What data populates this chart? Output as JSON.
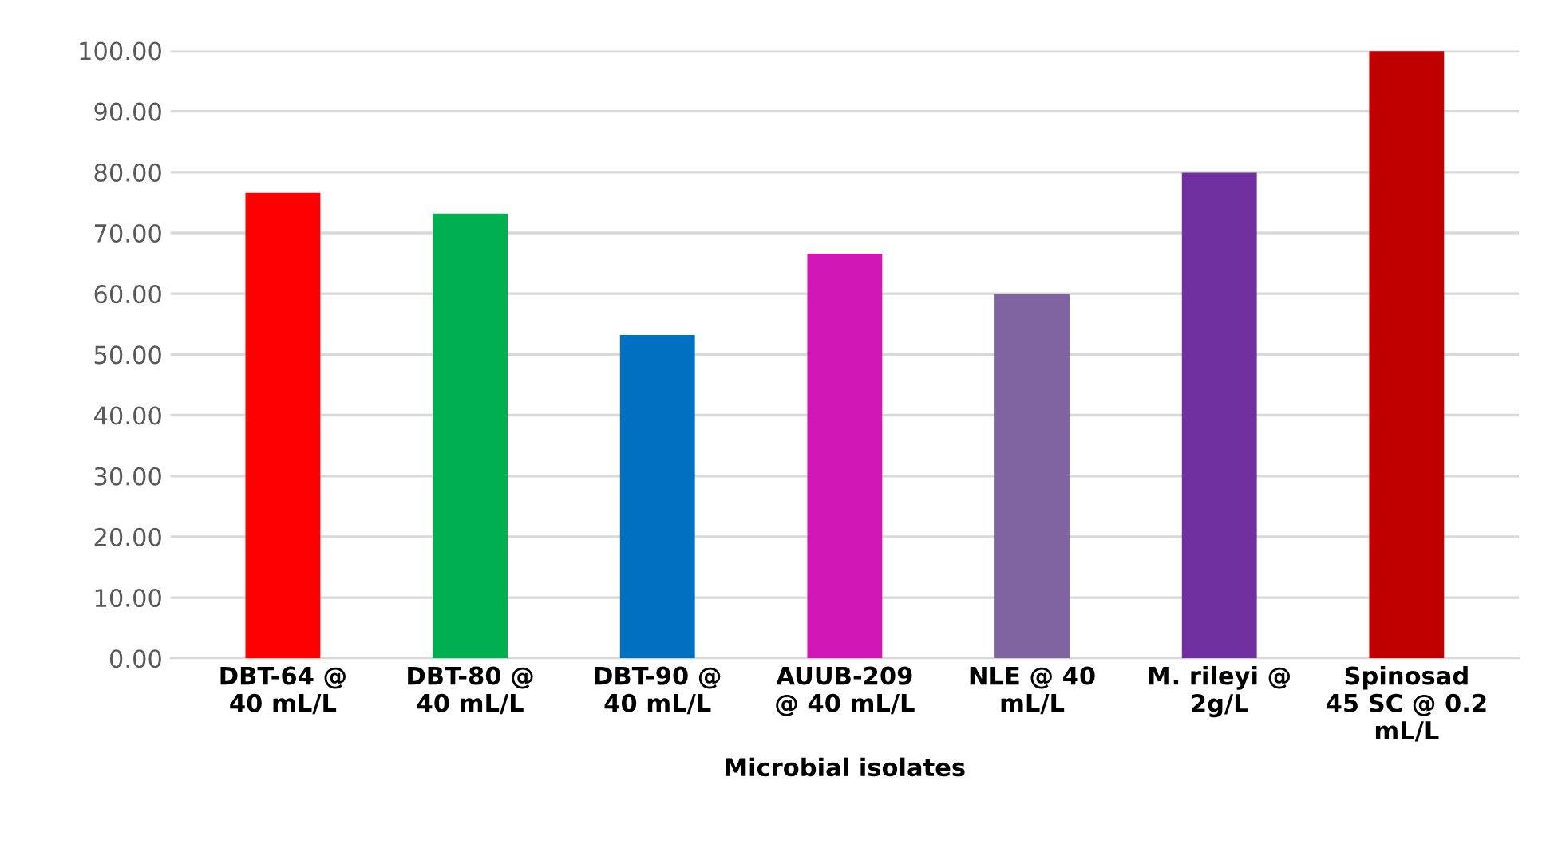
{
  "chart_data": {
    "type": "bar",
    "xlabel": "Microbial isolates",
    "categories": [
      "DBT-64 @\n40 mL/L",
      "DBT-80 @\n40 mL/L",
      "DBT-90 @\n40 mL/L",
      "AUUB-209\n@ 40 mL/L",
      "NLE @ 40\nmL/L",
      "M. rileyi @\n2g/L",
      "Spinosad\n45 SC @ 0.2\nmL/L"
    ],
    "values": [
      76.6,
      73.2,
      53.2,
      66.6,
      60.0,
      79.9,
      99.9
    ],
    "colors": [
      "#ff0000",
      "#00b050",
      "#0070c0",
      "#d016b4",
      "#8064a2",
      "#7030a0",
      "#c00000"
    ],
    "ylim": [
      0,
      100
    ],
    "yticks": [
      {
        "value": 0,
        "label": "0.00"
      },
      {
        "value": 10,
        "label": "10.00"
      },
      {
        "value": 20,
        "label": "20.00"
      },
      {
        "value": 30,
        "label": "30.00"
      },
      {
        "value": 40,
        "label": "40.00"
      },
      {
        "value": 50,
        "label": "50.00"
      },
      {
        "value": 60,
        "label": "60.00"
      },
      {
        "value": 70,
        "label": "70.00"
      },
      {
        "value": 80,
        "label": "80.00"
      },
      {
        "value": 90,
        "label": "90.00"
      },
      {
        "value": 100,
        "label": "100.00"
      }
    ],
    "grid": "y"
  }
}
